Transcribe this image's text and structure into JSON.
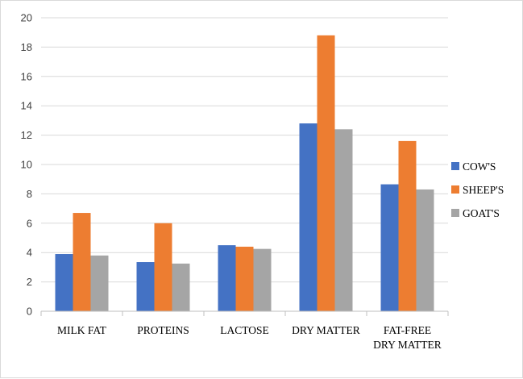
{
  "chart_data": {
    "type": "bar",
    "title": "",
    "xlabel": "",
    "ylabel": "",
    "ylim": [
      0,
      20
    ],
    "yticks": [
      0,
      2,
      4,
      6,
      8,
      10,
      12,
      14,
      16,
      18,
      20
    ],
    "grid": true,
    "legend_position": "right",
    "categories": [
      [
        "MILK FAT"
      ],
      [
        "PROTEINS"
      ],
      [
        "LACTOSE"
      ],
      [
        "DRY MATTER"
      ],
      [
        "FAT-FREE",
        "DRY MATTER"
      ]
    ],
    "series": [
      {
        "name": "COW'S",
        "color": "#4472c4",
        "values": [
          3.9,
          3.35,
          4.5,
          12.8,
          8.65
        ]
      },
      {
        "name": "SHEEP'S",
        "color": "#ed7d31",
        "values": [
          6.7,
          6.0,
          4.4,
          18.8,
          11.6
        ]
      },
      {
        "name": "GOAT'S",
        "color": "#a5a5a5",
        "values": [
          3.8,
          3.25,
          4.25,
          12.4,
          8.3
        ]
      }
    ]
  }
}
